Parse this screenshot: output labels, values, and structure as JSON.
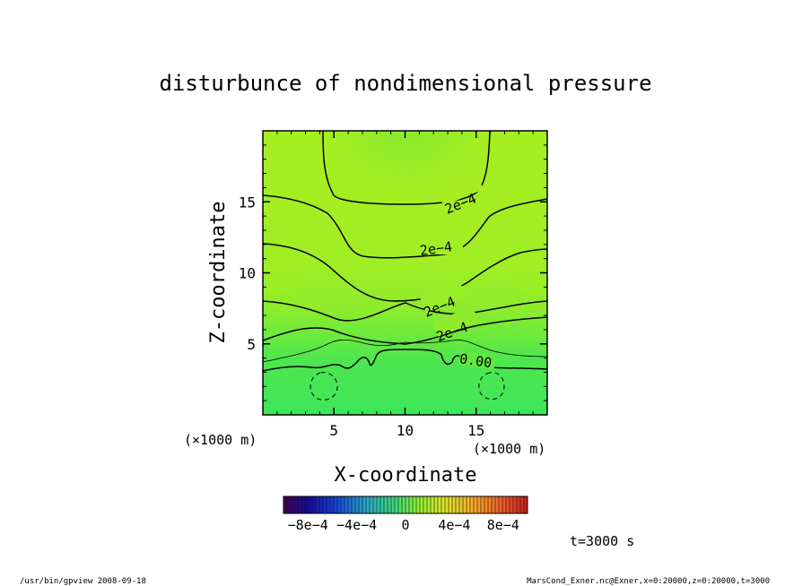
{
  "chart_data": {
    "type": "heatmap",
    "title": "disturbunce of nondimensional pressure",
    "xlabel": "X-coordinate",
    "ylabel": "Z-coordinate",
    "x_unit": "(×1000 m)",
    "y_unit": "(×1000 m)",
    "xlim": [
      0,
      20
    ],
    "ylim": [
      0,
      20
    ],
    "x_ticks": [
      5,
      10,
      15
    ],
    "y_ticks": [
      5,
      10,
      15
    ],
    "grid": false,
    "colormap": "blue-green-red (rainbow)",
    "colorbar": {
      "range": [
        -0.001,
        0.001
      ],
      "tick_values": [
        -0.0008,
        -0.0004,
        0,
        0.0004,
        0.0008
      ],
      "tick_labels": [
        "−8e−4",
        "−4e−4",
        "0",
        "4e−4",
        "8e−4"
      ]
    },
    "contour_labels": [
      {
        "text": "2e−4",
        "x": 12.8,
        "z": 14.9
      },
      {
        "text": "2e−4",
        "x": 12.4,
        "z": 11.6
      },
      {
        "text": "2e−4",
        "x": 12.6,
        "z": 7.9
      },
      {
        "text": "2e−4",
        "x": 13.2,
        "z": 6.0
      },
      {
        "text": "0.00",
        "x": 14.8,
        "z": 3.6
      }
    ],
    "colors": {
      "field_background": "#a8f01e",
      "field_low": "#3ce85a",
      "contour": "#000000"
    }
  },
  "annotations": {
    "time": "t=3000 s",
    "footer_left": "/usr/bin/gpview   2008-09-18",
    "footer_right": "MarsCond_Exner.nc@Exner,x=0:20000,z=0:20000,t=3000"
  }
}
